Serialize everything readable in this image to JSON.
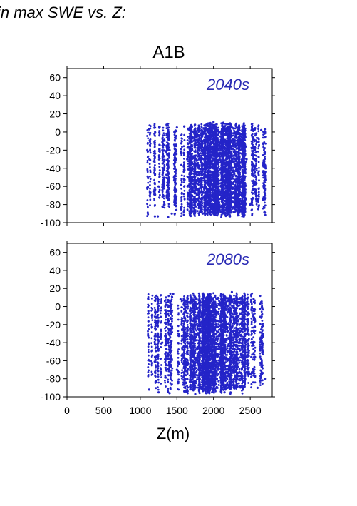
{
  "heading": "in max SWE vs. Z:",
  "figure_title": "A1B",
  "colors": {
    "points": "#2424c8",
    "label": "#2a2ab4",
    "axes": "#000000"
  },
  "chart_data": [
    {
      "type": "scatter",
      "panel_label": "2040s",
      "xlabel": "",
      "ylabel": "",
      "xlim": [
        0,
        2800
      ],
      "ylim": [
        -100,
        70
      ],
      "x_ticks": [],
      "y_ticks": [
        60,
        40,
        20,
        0,
        -20,
        -40,
        -60,
        -80,
        -100
      ],
      "grid": false,
      "point_cloud": {
        "x_range": [
          1100,
          2720
        ],
        "y_max": 11,
        "y_min": -95,
        "note_dense_core": "points densest 1700-2400 m between +5 and -90"
      },
      "series": [
        {
          "points": [
            [
              1120,
              3
            ],
            [
              1125,
              -30
            ],
            [
              1130,
              -70
            ],
            [
              1200,
              -93
            ],
            [
              1240,
              -93
            ],
            [
              1250,
              -60
            ],
            [
              1310,
              -40
            ],
            [
              1330,
              -80
            ],
            [
              1360,
              7
            ],
            [
              1400,
              -20
            ],
            [
              1430,
              -90
            ],
            [
              1460,
              -50
            ],
            [
              1500,
              5
            ],
            [
              1560,
              -85
            ],
            [
              1600,
              6
            ],
            [
              1640,
              -30
            ],
            [
              1700,
              -88
            ],
            [
              1760,
              -60
            ],
            [
              1800,
              7
            ],
            [
              1850,
              -90
            ],
            [
              1900,
              8
            ],
            [
              1950,
              -20
            ],
            [
              2000,
              11
            ],
            [
              2050,
              -92
            ],
            [
              2100,
              -45
            ],
            [
              2150,
              6
            ],
            [
              2200,
              -89
            ],
            [
              2250,
              5
            ],
            [
              2300,
              -70
            ],
            [
              2350,
              -88
            ],
            [
              2400,
              5
            ],
            [
              2450,
              -30
            ],
            [
              2500,
              -80
            ],
            [
              2560,
              4
            ],
            [
              2600,
              -75
            ],
            [
              2650,
              2
            ],
            [
              2700,
              -89
            ],
            [
              2710,
              -40
            ]
          ]
        }
      ]
    },
    {
      "type": "scatter",
      "panel_label": "2080s",
      "xlabel": "Z(m)",
      "ylabel": "",
      "xlim": [
        0,
        2800
      ],
      "ylim": [
        -100,
        70
      ],
      "x_ticks": [
        0,
        500,
        1000,
        1500,
        2000,
        2500
      ],
      "y_ticks": [
        60,
        40,
        20,
        0,
        -20,
        -40,
        -60,
        -80,
        -100
      ],
      "grid": false,
      "point_cloud": {
        "x_range": [
          1100,
          2720
        ],
        "y_max": 16,
        "y_min": -97,
        "note_dense_core": "points densest 1700-2400 m between +5 and -95"
      },
      "series": [
        {
          "points": [
            [
              1110,
              -5
            ],
            [
              1120,
              -92
            ],
            [
              1130,
              -60
            ],
            [
              1220,
              12
            ],
            [
              1250,
              -95
            ],
            [
              1300,
              -40
            ],
            [
              1350,
              10
            ],
            [
              1400,
              -96
            ],
            [
              1450,
              14
            ],
            [
              1500,
              -70
            ],
            [
              1550,
              8
            ],
            [
              1600,
              -94
            ],
            [
              1650,
              5
            ],
            [
              1700,
              -50
            ],
            [
              1750,
              -97
            ],
            [
              1800,
              7
            ],
            [
              1850,
              -30
            ],
            [
              1900,
              -96
            ],
            [
              1950,
              4
            ],
            [
              2000,
              -90
            ],
            [
              2050,
              8
            ],
            [
              2100,
              -60
            ],
            [
              2150,
              -95
            ],
            [
              2200,
              6
            ],
            [
              2250,
              16
            ],
            [
              2300,
              -88
            ],
            [
              2350,
              -40
            ],
            [
              2400,
              -92
            ],
            [
              2450,
              2
            ],
            [
              2500,
              -75
            ],
            [
              2550,
              5
            ],
            [
              2600,
              -90
            ],
            [
              2650,
              5
            ],
            [
              2700,
              -80
            ]
          ]
        }
      ]
    }
  ]
}
